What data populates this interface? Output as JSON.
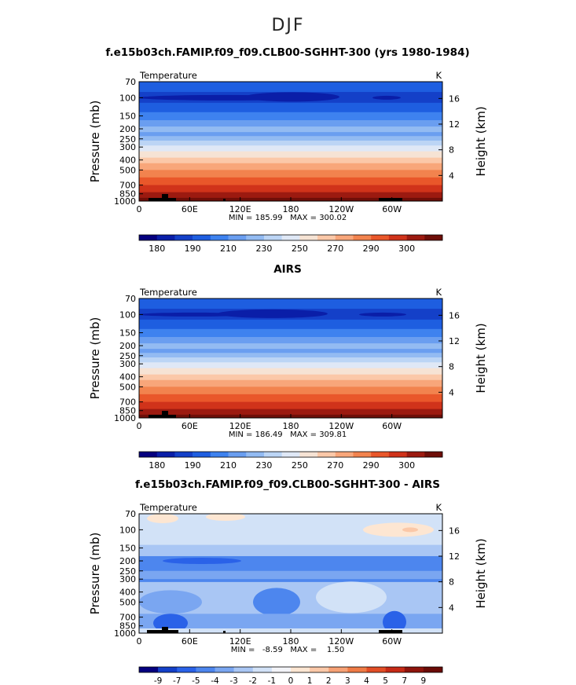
{
  "page": {
    "title": "DJF"
  },
  "chart_data": [
    {
      "type": "heatmap",
      "title": "f.e15b03ch.FAMIP.f09_f09.CLB00-SGHHT-300 (yrs 1980-1984)",
      "field_label": "Temperature",
      "units": "K",
      "ylabel": "Pressure (mb)",
      "ylabel_right": "Height (km)",
      "x_ticks": [
        "0",
        "60E",
        "120E",
        "180",
        "120W",
        "60W"
      ],
      "y_ticks": [
        "70",
        "100",
        "150",
        "200",
        "250",
        "300",
        "400",
        "500",
        "700",
        "850",
        "1000"
      ],
      "y_ticks_right": [
        "16",
        "12",
        "8",
        "4"
      ],
      "stats": "MIN = 185.99   MAX = 300.02",
      "min": 185.99,
      "max": 300.02,
      "colorbar_labels": [
        "180",
        "190",
        "210",
        "230",
        "250",
        "270",
        "290",
        "300"
      ]
    },
    {
      "type": "heatmap",
      "title": "AIRS",
      "field_label": "Temperature",
      "units": "K",
      "ylabel": "Pressure (mb)",
      "ylabel_right": "Height (km)",
      "x_ticks": [
        "0",
        "60E",
        "120E",
        "180",
        "120W",
        "60W"
      ],
      "y_ticks": [
        "70",
        "100",
        "150",
        "200",
        "250",
        "300",
        "400",
        "500",
        "700",
        "850",
        "1000"
      ],
      "y_ticks_right": [
        "16",
        "12",
        "8",
        "4"
      ],
      "stats": "MIN = 186.49   MAX = 309.81",
      "min": 186.49,
      "max": 309.81,
      "colorbar_labels": [
        "180",
        "190",
        "210",
        "230",
        "250",
        "270",
        "290",
        "300"
      ]
    },
    {
      "type": "heatmap",
      "title": "f.e15b03ch.FAMIP.f09_f09.CLB00-SGHHT-300 - AIRS",
      "field_label": "Temperature",
      "units": "K",
      "ylabel": "Pressure (mb)",
      "ylabel_right": "Height (km)",
      "x_ticks": [
        "0",
        "60E",
        "120E",
        "180",
        "120W",
        "60W"
      ],
      "y_ticks": [
        "70",
        "100",
        "150",
        "200",
        "250",
        "300",
        "400",
        "500",
        "700",
        "850",
        "1000"
      ],
      "y_ticks_right": [
        "16",
        "12",
        "8",
        "4"
      ],
      "stats": "MIN =   -8.59   MAX =    1.50",
      "min": -8.59,
      "max": 1.5,
      "colorbar_labels": [
        "-9",
        "-7",
        "-5",
        "-4",
        "-3",
        "-2",
        "-1",
        "0",
        "1",
        "2",
        "3",
        "4",
        "5",
        "7",
        "9"
      ]
    }
  ],
  "colors": {
    "scale": [
      "#05007f",
      "#0a1ea8",
      "#1440c8",
      "#1e5ee0",
      "#3e82ef",
      "#6a9ef0",
      "#93bbf2",
      "#bcd5f5",
      "#dfe8f6",
      "#f6e3d4",
      "#fbc8a8",
      "#f8a67a",
      "#f2834e",
      "#e9572a",
      "#d0331a",
      "#9c1a10",
      "#6e0e08"
    ],
    "diff_scale": [
      "#05007f",
      "#1440c8",
      "#2a62e8",
      "#4d86ee",
      "#7aa6f1",
      "#a9c6f4",
      "#d2e2f7",
      "#f3f4f8",
      "#fde6d2",
      "#fbc8a8",
      "#f6a175",
      "#ef7b46",
      "#e24e26",
      "#c62a16",
      "#8e140c",
      "#6a0b06"
    ],
    "terrain": "#000000"
  }
}
